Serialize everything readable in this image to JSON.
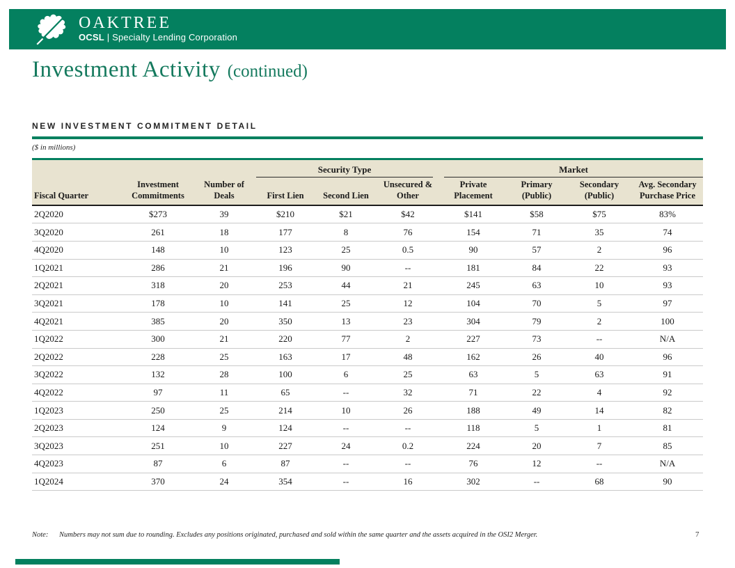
{
  "colors": {
    "brand_green": "#04805f",
    "title_green": "#157a5e",
    "beige": "#e8e3d0",
    "ink": "#1a1a1a",
    "row_line": "#c9c9c9"
  },
  "brand": {
    "logo_title": "OAKTREE",
    "logo_sub_bold": "OCSL",
    "logo_sub_sep": " | ",
    "logo_sub_rest": "Specialty Lending Corporation",
    "leaf_icon": "oak-leaf-icon"
  },
  "page": {
    "title_main": "Investment Activity",
    "title_suffix": "(continued)",
    "page_number": "7"
  },
  "section": {
    "heading": "NEW INVESTMENT COMMITMENT DETAIL",
    "units_note": "($ in millions)"
  },
  "footer": {
    "note_label": "Note:",
    "note_text": "Numbers may not sum due to rounding. Excludes any positions originated, purchased and sold within the same quarter and the assets acquired in the OSI2 Merger."
  },
  "table": {
    "groups": [
      {
        "label": "Security Type"
      },
      {
        "label": "Market"
      }
    ],
    "columns": [
      "Fiscal Quarter",
      "Investment\nCommitments",
      "Number of\nDeals",
      "First Lien",
      "Second Lien",
      "Unsecured &\nOther",
      "Private\nPlacement",
      "Primary\n(Public)",
      "Secondary\n(Public)",
      "Avg. Secondary\nPurchase Price"
    ],
    "rows": [
      [
        "2Q2020",
        "$273",
        "39",
        "$210",
        "$21",
        "$42",
        "$141",
        "$58",
        "$75",
        "83%"
      ],
      [
        "3Q2020",
        "261",
        "18",
        "177",
        "8",
        "76",
        "154",
        "71",
        "35",
        "74"
      ],
      [
        "4Q2020",
        "148",
        "10",
        "123",
        "25",
        "0.5",
        "90",
        "57",
        "2",
        "96"
      ],
      [
        "1Q2021",
        "286",
        "21",
        "196",
        "90",
        "--",
        "181",
        "84",
        "22",
        "93"
      ],
      [
        "2Q2021",
        "318",
        "20",
        "253",
        "44",
        "21",
        "245",
        "63",
        "10",
        "93"
      ],
      [
        "3Q2021",
        "178",
        "10",
        "141",
        "25",
        "12",
        "104",
        "70",
        "5",
        "97"
      ],
      [
        "4Q2021",
        "385",
        "20",
        "350",
        "13",
        "23",
        "304",
        "79",
        "2",
        "100"
      ],
      [
        "1Q2022",
        "300",
        "21",
        "220",
        "77",
        "2",
        "227",
        "73",
        "--",
        "N/A"
      ],
      [
        "2Q2022",
        "228",
        "25",
        "163",
        "17",
        "48",
        "162",
        "26",
        "40",
        "96"
      ],
      [
        "3Q2022",
        "132",
        "28",
        "100",
        "6",
        "25",
        "63",
        "5",
        "63",
        "91"
      ],
      [
        "4Q2022",
        "97",
        "11",
        "65",
        "--",
        "32",
        "71",
        "22",
        "4",
        "92"
      ],
      [
        "1Q2023",
        "250",
        "25",
        "214",
        "10",
        "26",
        "188",
        "49",
        "14",
        "82"
      ],
      [
        "2Q2023",
        "124",
        "9",
        "124",
        "--",
        "--",
        "118",
        "5",
        "1",
        "81"
      ],
      [
        "3Q2023",
        "251",
        "10",
        "227",
        "24",
        "0.2",
        "224",
        "20",
        "7",
        "85"
      ],
      [
        "4Q2023",
        "87",
        "6",
        "87",
        "--",
        "--",
        "76",
        "12",
        "--",
        "N/A"
      ],
      [
        "1Q2024",
        "370",
        "24",
        "354",
        "--",
        "16",
        "302",
        "--",
        "68",
        "90"
      ]
    ]
  }
}
